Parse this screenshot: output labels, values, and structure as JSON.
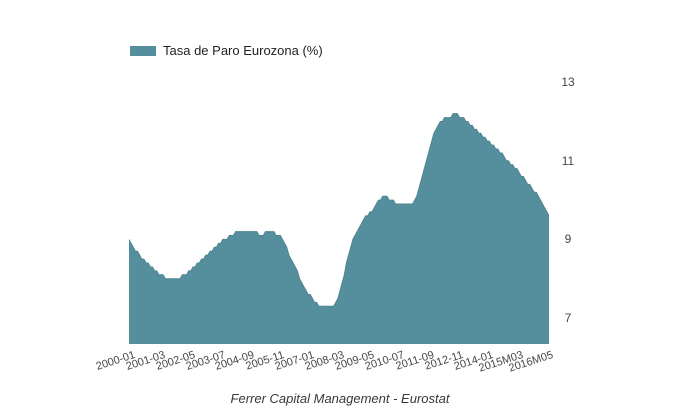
{
  "legend": {
    "label": "Tasa de Paro Eurozona (%)"
  },
  "caption": "Ferrer Capital Management - Eurostat",
  "colors": {
    "background": "#ffffff",
    "area_fill": "#558e9d",
    "area_stroke": "#4e8593",
    "axis_text": "#454545",
    "legend_text": "#1f1f1f",
    "caption_text": "#383838"
  },
  "chart_data": {
    "type": "area",
    "title": "",
    "xlabel": "",
    "ylabel": "",
    "grid": false,
    "legend_position": "top-left",
    "ytick_side": "right",
    "yticks": [
      7,
      9,
      11,
      13
    ],
    "ylim": [
      6.34,
      13.31
    ],
    "x_start": "2000-01",
    "x_end": "2016-06",
    "x_frequency": "monthly",
    "n_points": 198,
    "xticks": [
      "2000-01",
      "2001-03",
      "2002-05",
      "2003-07",
      "2004-09",
      "2005-11",
      "2007-01",
      "2008-03",
      "2009-05",
      "2010-07",
      "2011-09",
      "2012-11",
      "2014-01",
      "2015M03",
      "2016M05"
    ],
    "xtick_interval_months": 14,
    "series": [
      {
        "name": "Tasa de Paro Eurozona (%)",
        "values": [
          9.0,
          8.9,
          8.8,
          8.7,
          8.7,
          8.6,
          8.5,
          8.5,
          8.4,
          8.4,
          8.3,
          8.3,
          8.2,
          8.2,
          8.1,
          8.1,
          8.1,
          8.0,
          8.0,
          8.0,
          8.0,
          8.0,
          8.0,
          8.0,
          8.0,
          8.1,
          8.1,
          8.1,
          8.2,
          8.2,
          8.3,
          8.3,
          8.4,
          8.4,
          8.5,
          8.5,
          8.6,
          8.6,
          8.7,
          8.7,
          8.8,
          8.8,
          8.9,
          8.9,
          9.0,
          9.0,
          9.0,
          9.1,
          9.1,
          9.1,
          9.2,
          9.2,
          9.2,
          9.2,
          9.2,
          9.2,
          9.2,
          9.2,
          9.2,
          9.2,
          9.2,
          9.1,
          9.1,
          9.1,
          9.2,
          9.2,
          9.2,
          9.2,
          9.2,
          9.1,
          9.1,
          9.1,
          9.0,
          8.9,
          8.8,
          8.6,
          8.5,
          8.4,
          8.3,
          8.2,
          8.0,
          7.9,
          7.8,
          7.7,
          7.6,
          7.6,
          7.5,
          7.4,
          7.4,
          7.3,
          7.3,
          7.3,
          7.3,
          7.3,
          7.3,
          7.3,
          7.3,
          7.4,
          7.5,
          7.7,
          7.9,
          8.1,
          8.4,
          8.6,
          8.8,
          9.0,
          9.1,
          9.2,
          9.3,
          9.4,
          9.5,
          9.6,
          9.6,
          9.7,
          9.7,
          9.8,
          9.9,
          10.0,
          10.0,
          10.1,
          10.1,
          10.1,
          10.0,
          10.0,
          10.0,
          9.9,
          9.9,
          9.9,
          9.9,
          9.9,
          9.9,
          9.9,
          9.9,
          9.9,
          10.0,
          10.1,
          10.3,
          10.5,
          10.7,
          10.9,
          11.1,
          11.3,
          11.5,
          11.7,
          11.8,
          11.9,
          12.0,
          12.0,
          12.1,
          12.1,
          12.1,
          12.1,
          12.2,
          12.2,
          12.2,
          12.1,
          12.1,
          12.1,
          12.0,
          12.0,
          11.9,
          11.9,
          11.8,
          11.8,
          11.7,
          11.7,
          11.6,
          11.6,
          11.5,
          11.5,
          11.4,
          11.4,
          11.3,
          11.3,
          11.2,
          11.2,
          11.1,
          11.0,
          11.0,
          10.9,
          10.9,
          10.8,
          10.8,
          10.7,
          10.6,
          10.6,
          10.5,
          10.4,
          10.4,
          10.3,
          10.2,
          10.2,
          10.1,
          10.0,
          9.9,
          9.8,
          9.7,
          9.6
        ]
      }
    ]
  }
}
